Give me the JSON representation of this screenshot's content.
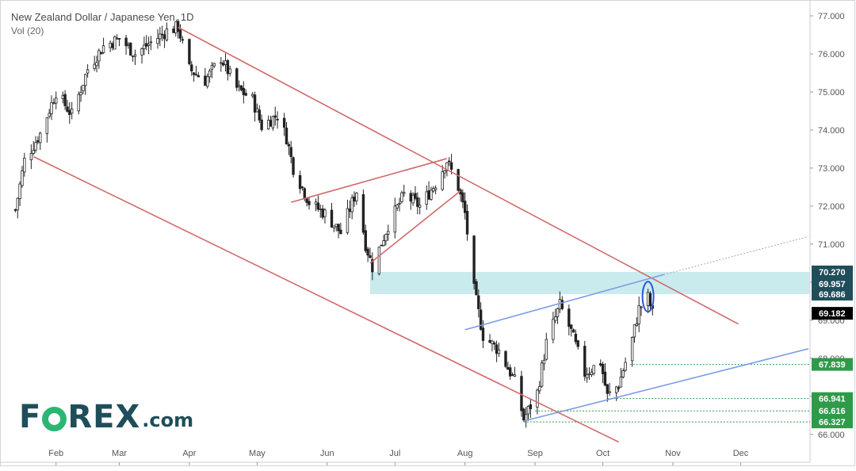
{
  "header": {
    "title": "New Zealand Dollar / Japanese Yen, 1D",
    "vol_label": "Vol (20)"
  },
  "logo": {
    "text_before": "F",
    "text_after": "REX",
    "suffix": ".com",
    "full": "FOREX.com"
  },
  "colors": {
    "up": "#26a69a",
    "down": "#1a1a1a",
    "candle": "#222222",
    "channel": "#d26a6a",
    "blue_line": "#7b9be6",
    "zone": "#b8e4e8",
    "label_bg": "#1f4e5a",
    "price_bg": "#000000",
    "green_dotted": "#2e9b4a",
    "logo_green": "#2bb673",
    "logo_text": "#1f4e5a"
  },
  "chart_data": {
    "type": "candlestick",
    "title": "New Zealand Dollar / Japanese Yen, 1D",
    "y_axis": {
      "ticks": [
        "66.000",
        "67.000",
        "68.000",
        "69.000",
        "70.000",
        "71.000",
        "72.000",
        "73.000",
        "74.000",
        "75.000",
        "76.000",
        "77.000"
      ],
      "range": [
        65.85,
        77.25
      ]
    },
    "x_axis": {
      "ticks": [
        "Feb",
        "Mar",
        "Apr",
        "May",
        "Jun",
        "Jul",
        "Aug",
        "Sep",
        "Oct",
        "Nov",
        "Dec"
      ]
    },
    "close_path": [
      [
        "2019-01-14",
        71.9
      ],
      [
        "2019-01-18",
        73.2
      ],
      [
        "2019-01-25",
        73.9
      ],
      [
        "2019-02-01",
        75.0
      ],
      [
        "2019-02-08",
        74.4
      ],
      [
        "2019-02-15",
        75.6
      ],
      [
        "2019-02-22",
        76.2
      ],
      [
        "2019-03-01",
        76.4
      ],
      [
        "2019-03-08",
        76.0
      ],
      [
        "2019-03-15",
        76.3
      ],
      [
        "2019-03-22",
        76.6
      ],
      [
        "2019-03-27",
        76.7
      ],
      [
        "2019-04-01",
        75.6
      ],
      [
        "2019-04-08",
        75.3
      ],
      [
        "2019-04-15",
        75.9
      ],
      [
        "2019-04-22",
        75.1
      ],
      [
        "2019-04-29",
        74.8
      ],
      [
        "2019-05-03",
        74.1
      ],
      [
        "2019-05-10",
        74.4
      ],
      [
        "2019-05-14",
        73.8
      ],
      [
        "2019-05-17",
        73.0
      ],
      [
        "2019-05-24",
        72.1
      ],
      [
        "2019-05-31",
        71.8
      ],
      [
        "2019-06-07",
        71.3
      ],
      [
        "2019-06-14",
        72.4
      ],
      [
        "2019-06-18",
        71.0
      ],
      [
        "2019-06-21",
        70.4
      ],
      [
        "2019-06-28",
        71.5
      ],
      [
        "2019-07-05",
        72.3
      ],
      [
        "2019-07-12",
        72.0
      ],
      [
        "2019-07-19",
        72.6
      ],
      [
        "2019-07-24",
        73.2
      ],
      [
        "2019-07-29",
        72.5
      ],
      [
        "2019-08-01",
        71.8
      ],
      [
        "2019-08-05",
        69.8
      ],
      [
        "2019-08-09",
        68.6
      ],
      [
        "2019-08-16",
        68.2
      ],
      [
        "2019-08-23",
        67.4
      ],
      [
        "2019-08-27",
        66.4
      ],
      [
        "2019-09-02",
        67.1
      ],
      [
        "2019-09-06",
        68.4
      ],
      [
        "2019-09-12",
        69.4
      ],
      [
        "2019-09-17",
        68.7
      ],
      [
        "2019-09-23",
        67.6
      ],
      [
        "2019-09-30",
        67.9
      ],
      [
        "2019-10-03",
        67.0
      ],
      [
        "2019-10-08",
        67.3
      ],
      [
        "2019-10-14",
        68.5
      ],
      [
        "2019-10-17",
        69.3
      ],
      [
        "2019-10-21",
        69.6
      ],
      [
        "2019-10-23",
        69.18
      ]
    ],
    "levels": [
      {
        "label": "70.270",
        "value": 70.27,
        "style": "zone"
      },
      {
        "label": "69.957",
        "value": 69.957,
        "style": "zone"
      },
      {
        "label": "69.686",
        "value": 69.686,
        "style": "zone"
      },
      {
        "label": "69.182",
        "value": 69.182,
        "style": "price"
      },
      {
        "label": "67.839",
        "value": 67.839,
        "style": "dotted"
      },
      {
        "label": "66.941",
        "value": 66.941,
        "style": "dotted"
      },
      {
        "label": "66.616",
        "value": 66.616,
        "style": "dotted"
      },
      {
        "label": "66.327",
        "value": 66.327,
        "style": "dotted"
      }
    ],
    "lines": [
      {
        "name": "channel-top",
        "from": [
          "2019-03-27",
          76.7
        ],
        "to": [
          "2019-11-30",
          68.9
        ]
      },
      {
        "name": "channel-bottom",
        "from": [
          "2019-01-22",
          73.3
        ],
        "to": [
          "2019-10-08",
          65.8
        ]
      },
      {
        "name": "wedge-top",
        "from": [
          "2019-05-16",
          72.1
        ],
        "to": [
          "2019-07-24",
          73.25
        ]
      },
      {
        "name": "wedge-bottom",
        "from": [
          "2019-06-20",
          70.5
        ],
        "to": [
          "2019-07-30",
          72.4
        ]
      },
      {
        "name": "blue-upper",
        "from": [
          "2019-08-01",
          68.75
        ],
        "to": [
          "2019-10-28",
          70.2
        ]
      },
      {
        "name": "blue-lower",
        "from": [
          "2019-08-27",
          66.35
        ],
        "to": [
          "2019-12-31",
          68.25
        ]
      }
    ],
    "zone": {
      "from": "2019-06-20",
      "low": 69.686,
      "high": 70.27
    }
  }
}
